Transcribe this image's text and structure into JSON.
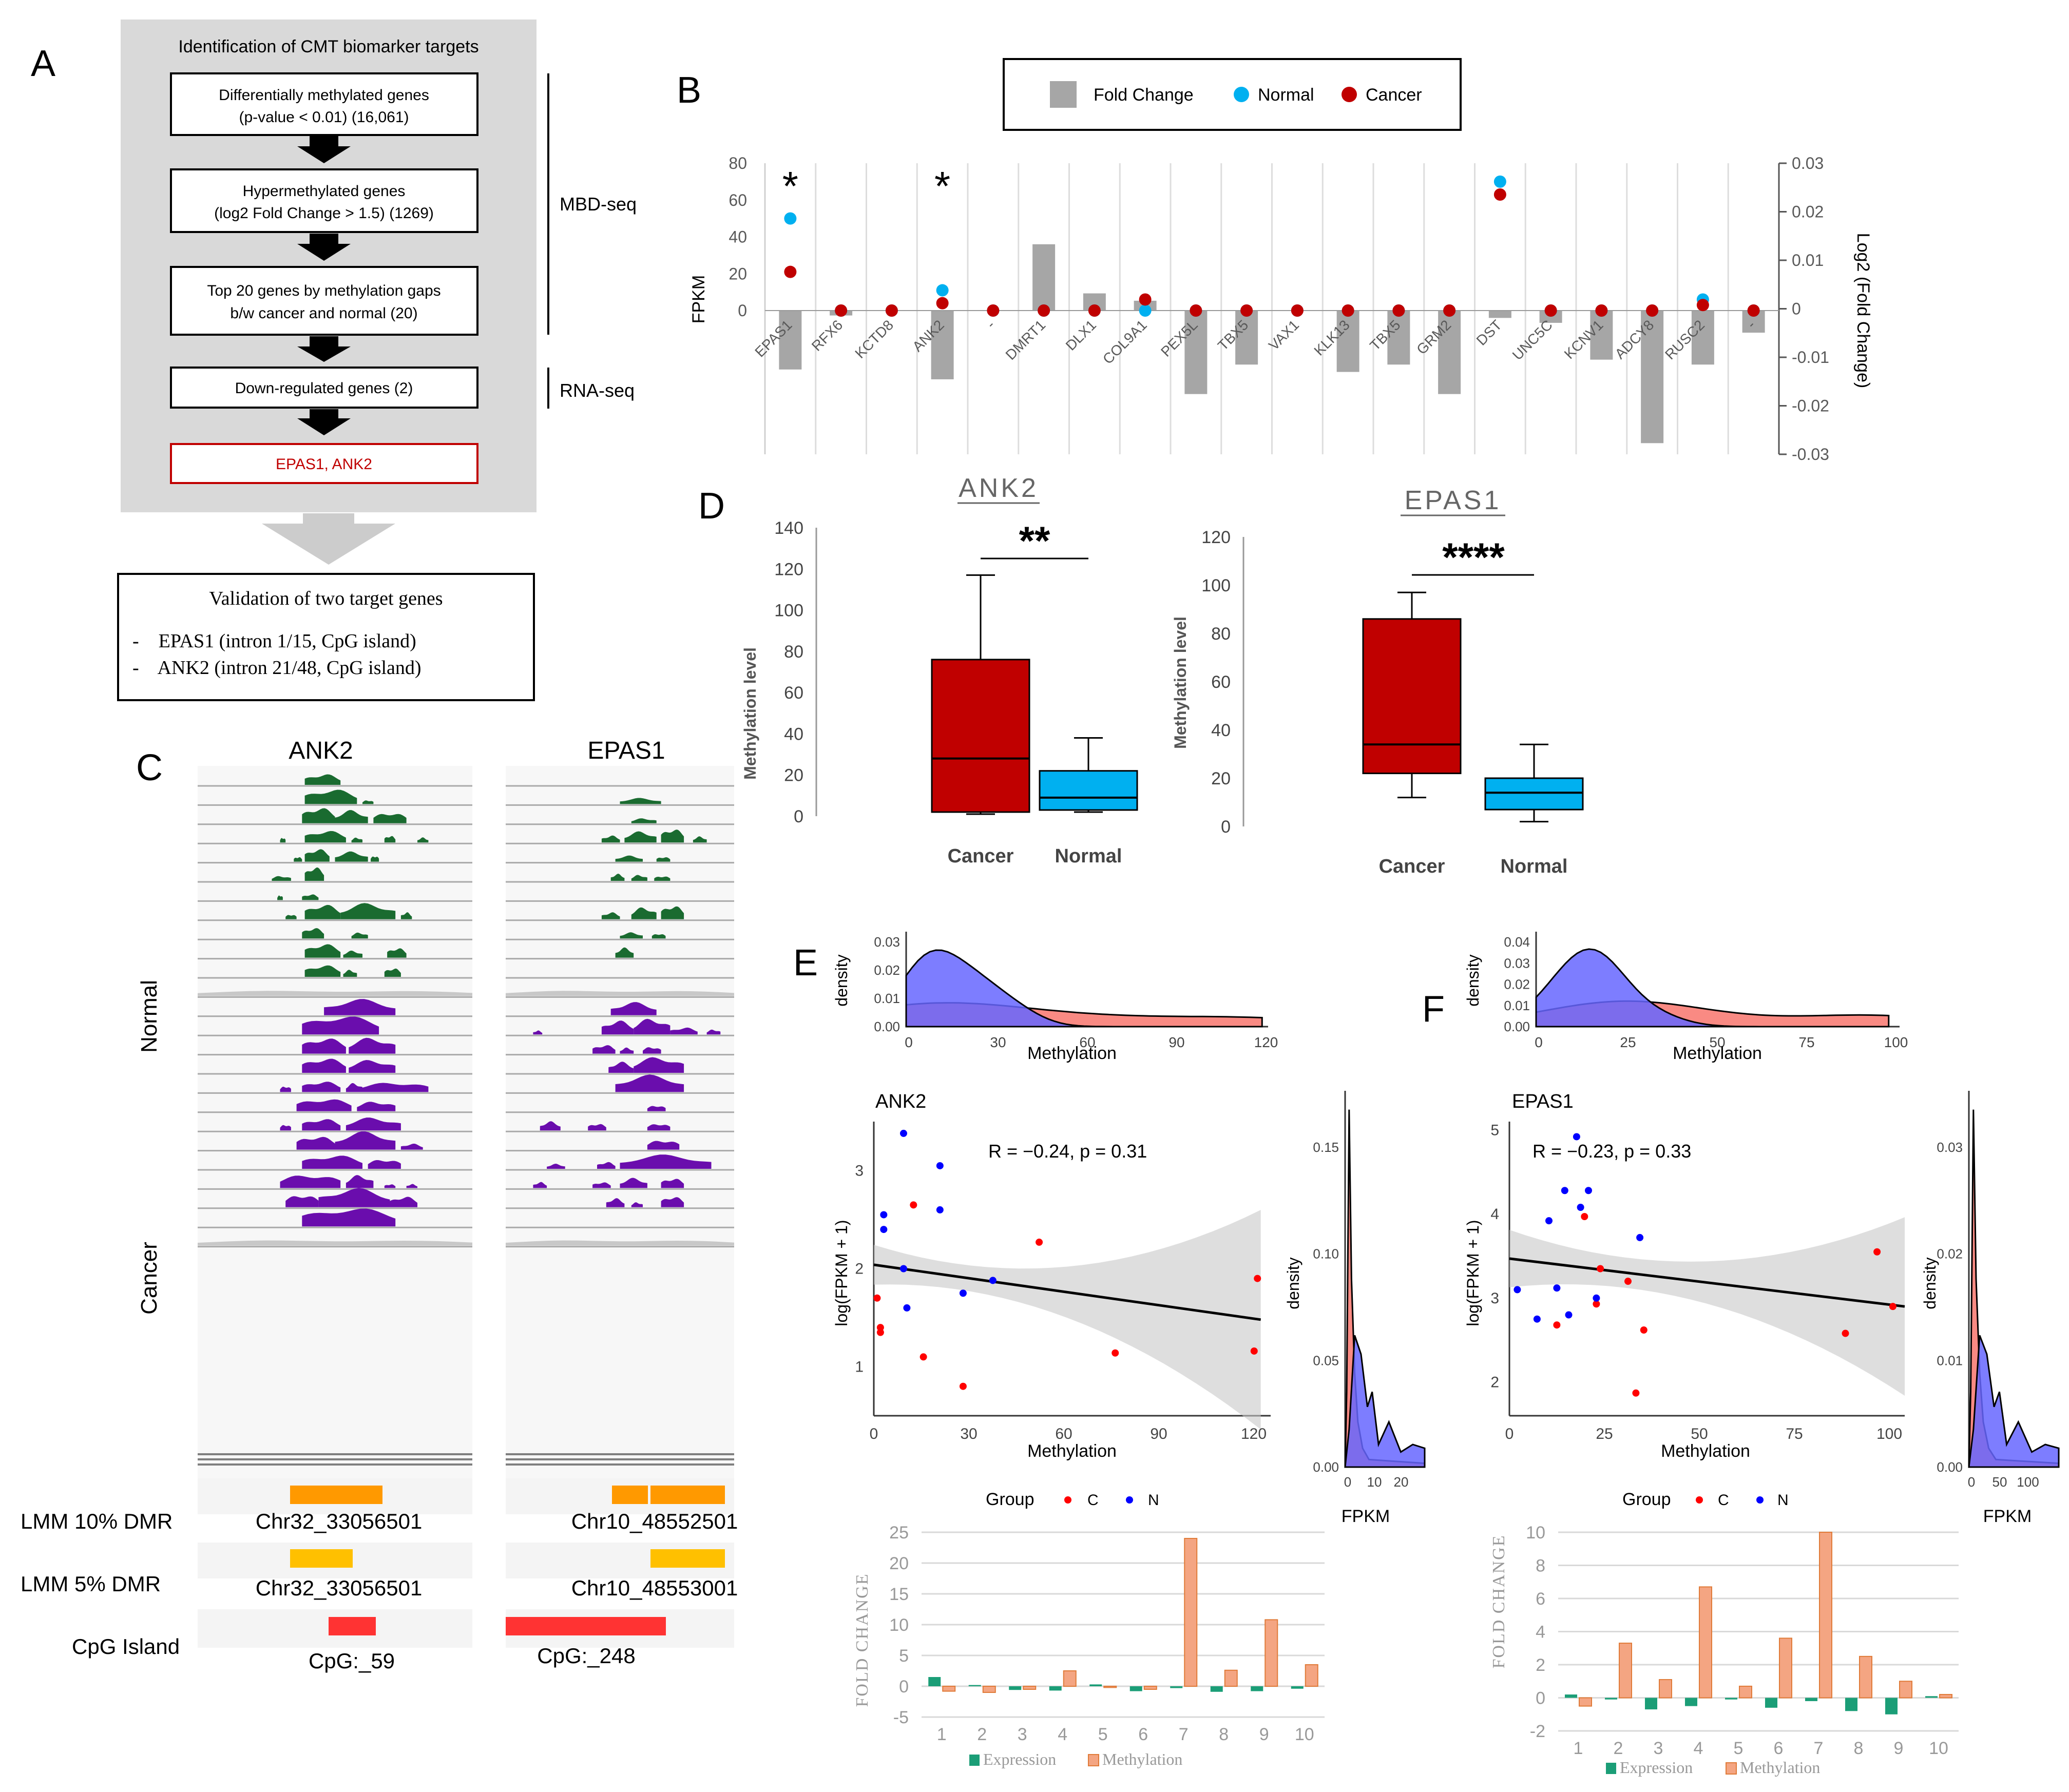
{
  "colors": {
    "panel_bg": "#d9d9d9",
    "arrow_bg": "#cccccc",
    "bar_gray": "#a6a6a6",
    "normal_blue": "#00b0f0",
    "cancer_red": "#c00000",
    "box_red": "#c00000",
    "box_blue": "#00b0f0",
    "track_green": "#1a6b30",
    "track_purple": "#6a0dad",
    "track_gray": "#c8c8c8",
    "dmr_orange": "#ff9900",
    "dmr_yellow": "#ffc000",
    "cpg_red": "#ff3333",
    "density_red": "#f8766d",
    "density_blue": "#6666ff",
    "expression_green": "#1b9e77",
    "methylation_orange": "#f4a582"
  },
  "panel_labels": {
    "a": "A",
    "b": "B",
    "c": "C",
    "d": "D",
    "e": "E",
    "f": "F"
  },
  "panelA": {
    "title": "Identification of CMT biomarker targets",
    "steps": [
      {
        "line1": "Differentially methylated genes",
        "line2": "(p-value < 0.01) (16,061)"
      },
      {
        "line1": "Hypermethylated genes",
        "line2": "(log2 Fold Change > 1.5) (1269)"
      },
      {
        "line1": "Top 20 genes by methylation gaps",
        "line2": "b/w cancer and normal (20)"
      },
      {
        "line1": "Down-regulated genes (2)",
        "line2": ""
      },
      {
        "line1": "EPAS1, ANK2",
        "line2": ""
      }
    ],
    "side_labels": [
      "MBD-seq",
      "RNA-seq"
    ],
    "validation": {
      "title": "Validation of two target genes",
      "items": [
        "-    EPAS1 (intron 1/15, CpG island)",
        "-    ANK2 (intron 21/48, CpG island)"
      ]
    }
  },
  "chart_data": [
    {
      "type": "bar",
      "panel": "B",
      "categories": [
        "EPAS1",
        "RFX6",
        "KCTD8",
        "ANK2",
        "-",
        "DMRT1",
        "DLX1",
        "COL9A1",
        "PEX5L",
        "TBX5",
        "VAX1",
        "KLK13",
        "TBX5",
        "GRM2",
        "DST",
        "UNC5C",
        "KCNV1",
        "ADCY8",
        "RUSC2",
        "-"
      ],
      "series": [
        {
          "name": "Fold Change",
          "axis": "right",
          "values": [
            -0.012,
            -0.001,
            0,
            -0.014,
            0,
            0.0135,
            0.0035,
            0.002,
            -0.017,
            -0.011,
            0,
            -0.0125,
            -0.011,
            -0.017,
            -0.0015,
            -0.0025,
            -0.01,
            -0.027,
            -0.011,
            -0.0045
          ]
        },
        {
          "name": "Normal",
          "axis": "left",
          "values": [
            50,
            0,
            0,
            11,
            0,
            0,
            0,
            0,
            0,
            0,
            0,
            0,
            0,
            0,
            70,
            0,
            0,
            0,
            6,
            0
          ]
        },
        {
          "name": "Cancer",
          "axis": "left",
          "values": [
            21,
            0,
            0,
            4,
            0,
            0,
            0,
            6,
            0,
            0,
            0,
            0,
            0,
            0,
            63,
            0,
            0,
            0,
            3,
            0
          ]
        }
      ],
      "ylabel": "FPKM",
      "y2label": "Log2 (Fold Change)",
      "yticks": [
        "80",
        "60",
        "40",
        "20",
        "0"
      ],
      "y2ticks": [
        "0.03",
        "0.02",
        "0.01",
        "0",
        "-0.01",
        "-0.02",
        "-0.03"
      ],
      "ylim": [
        -80,
        80
      ],
      "y2lim": [
        -0.03,
        0.03
      ],
      "significance": [
        {
          "category_index": 0,
          "label": "*"
        },
        {
          "category_index": 3,
          "label": "*"
        }
      ],
      "legend": [
        "Fold Change",
        "Normal",
        "Cancer"
      ],
      "legend_position": "top"
    },
    {
      "type": "box",
      "panel": "D",
      "title": "ANK2",
      "ylabel": "Methylation level",
      "categories": [
        "Cancer",
        "Normal"
      ],
      "ylim": [
        0,
        140
      ],
      "yticks": [
        "140",
        "120",
        "100",
        "80",
        "60",
        "40",
        "20",
        "0"
      ],
      "boxes": [
        {
          "min": 1,
          "q1": 2,
          "median": 28,
          "q3": 76,
          "max": 117
        },
        {
          "min": 2,
          "q1": 3,
          "median": 9,
          "q3": 22,
          "max": 38
        }
      ],
      "significance": "**"
    },
    {
      "type": "box",
      "panel": "D",
      "title": "EPAS1",
      "ylabel": "Methylation level",
      "categories": [
        "Cancer",
        "Normal"
      ],
      "ylim": [
        0,
        120
      ],
      "yticks": [
        "120",
        "100",
        "80",
        "60",
        "40",
        "20",
        "0"
      ],
      "boxes": [
        {
          "min": 12,
          "q1": 22,
          "median": 34,
          "q3": 86,
          "max": 97
        },
        {
          "min": 2,
          "q1": 7,
          "median": 14,
          "q3": 20,
          "max": 34
        }
      ],
      "significance": "****"
    },
    {
      "type": "scatter",
      "panel": "E",
      "title": "ANK2",
      "xlabel": "Methylation",
      "ylabel": "log(FPKM + 1)",
      "annotation": "R = −0.24, p = 0.31",
      "xlim": [
        0,
        120
      ],
      "ylim": [
        0.5,
        3.5
      ],
      "xticks": [
        "0",
        "30",
        "60",
        "90",
        "120"
      ],
      "yticks": [
        "1",
        "2",
        "3"
      ],
      "fit": [
        [
          0,
          2.04
        ],
        [
          117,
          1.48
        ]
      ],
      "series": [
        {
          "name": "C",
          "points": [
            [
              1,
              1.7
            ],
            [
              2,
              1.35
            ],
            [
              2,
              1.4
            ],
            [
              12,
              2.65
            ],
            [
              15,
              1.1
            ],
            [
              27,
              0.8
            ],
            [
              50,
              2.27
            ],
            [
              73,
              1.14
            ],
            [
              116,
              1.9
            ],
            [
              115,
              1.16
            ]
          ]
        },
        {
          "name": "N",
          "points": [
            [
              3,
              2.4
            ],
            [
              3,
              2.55
            ],
            [
              9,
              3.38
            ],
            [
              10,
              1.6
            ],
            [
              9,
              2.0
            ],
            [
              20,
              3.05
            ],
            [
              20,
              2.6
            ],
            [
              27,
              1.75
            ],
            [
              36,
              1.88
            ]
          ]
        }
      ],
      "top_density": {
        "xlabel": "Methylation",
        "ylabel": "density",
        "yticks": [
          "0.03",
          "0.02",
          "0.01",
          "0.00"
        ],
        "xticks": [
          "0",
          "30",
          "60",
          "90",
          "120"
        ]
      },
      "right_density": {
        "xlabel": "FPKM",
        "ylabel": "density",
        "yticks": [
          "0.15",
          "0.10",
          "0.05",
          "0.00"
        ],
        "xticks": [
          "0",
          "10",
          "20"
        ]
      },
      "legend_title": "Group"
    },
    {
      "type": "scatter",
      "panel": "F",
      "title": "EPAS1",
      "xlabel": "Methylation",
      "ylabel": "log(FPKM + 1)",
      "annotation": "R = −0.23, p = 0.33",
      "xlim": [
        0,
        100
      ],
      "ylim": [
        1.6,
        5.1
      ],
      "xticks": [
        "0",
        "25",
        "50",
        "75",
        "100"
      ],
      "yticks": [
        "2",
        "3",
        "4",
        "5"
      ],
      "fit": [
        [
          0,
          3.47
        ],
        [
          100,
          2.9
        ]
      ],
      "series": [
        {
          "name": "C",
          "points": [
            [
              12,
              2.68
            ],
            [
              19,
              3.97
            ],
            [
              22,
              2.93
            ],
            [
              23,
              3.35
            ],
            [
              30,
              3.2
            ],
            [
              32,
              1.87
            ],
            [
              34,
              2.62
            ],
            [
              85,
              2.58
            ],
            [
              93,
              3.55
            ],
            [
              97,
              2.9
            ]
          ]
        },
        {
          "name": "N",
          "points": [
            [
              2,
              3.1
            ],
            [
              7,
              2.75
            ],
            [
              10,
              3.92
            ],
            [
              12,
              3.12
            ],
            [
              14,
              4.28
            ],
            [
              15,
              2.8
            ],
            [
              17,
              4.92
            ],
            [
              18,
              4.08
            ],
            [
              20,
              4.28
            ],
            [
              22,
              3.0
            ],
            [
              33,
              3.72
            ]
          ]
        }
      ],
      "top_density": {
        "xlabel": "Methylation",
        "ylabel": "density",
        "yticks": [
          "0.04",
          "0.03",
          "0.02",
          "0.01",
          "0.00"
        ],
        "xticks": [
          "0",
          "25",
          "50",
          "75",
          "100"
        ]
      },
      "right_density": {
        "xlabel": "FPKM",
        "ylabel": "density",
        "yticks": [
          "0.03",
          "0.02",
          "0.01",
          "0.00"
        ],
        "xticks": [
          "0",
          "50",
          "100"
        ]
      },
      "legend_title": "Group"
    },
    {
      "type": "bar",
      "panel": "E",
      "ylabel": "FOLD CHANGE",
      "categories": [
        "1",
        "2",
        "3",
        "4",
        "5",
        "6",
        "7",
        "8",
        "9",
        "10"
      ],
      "ylim": [
        -5,
        25
      ],
      "yticks": [
        "25",
        "20",
        "15",
        "10",
        "5",
        "0",
        "-5"
      ],
      "series": [
        {
          "name": "Expression",
          "values": [
            1.5,
            0.2,
            -0.6,
            -0.7,
            0.3,
            -0.8,
            -0.3,
            -0.9,
            -0.8,
            -0.4
          ]
        },
        {
          "name": "Methylation",
          "values": [
            -0.8,
            -1.0,
            -0.5,
            2.5,
            -0.2,
            -0.5,
            24,
            2.6,
            10.8,
            3.5
          ]
        }
      ],
      "legend_position": "bottom"
    },
    {
      "type": "bar",
      "panel": "F",
      "ylabel": "FOLD CHANGE",
      "categories": [
        "1",
        "2",
        "3",
        "4",
        "5",
        "6",
        "7",
        "8",
        "9",
        "10"
      ],
      "ylim": [
        -2,
        10
      ],
      "yticks": [
        "10",
        "8",
        "6",
        "4",
        "2",
        "0",
        "-2"
      ],
      "series": [
        {
          "name": "Expression",
          "values": [
            0.2,
            -0.1,
            -0.7,
            -0.5,
            -0.1,
            -0.6,
            -0.2,
            -0.8,
            -1.0,
            0.1
          ]
        },
        {
          "name": "Methylation",
          "values": [
            -0.5,
            3.3,
            1.1,
            6.7,
            0.7,
            3.6,
            10,
            2.5,
            1.0,
            0.2
          ]
        }
      ],
      "legend_position": "bottom"
    }
  ],
  "panelC": {
    "genes": [
      "ANK2",
      "EPAS1"
    ],
    "group_labels": [
      "Normal",
      "Cancer"
    ],
    "row_labels": [
      "LMM 10% DMR",
      "LMM 5% DMR",
      "CpG Island"
    ],
    "ank2": {
      "dmr10": "Chr32_33056501",
      "dmr5": "Chr32_33056501",
      "cpg": "CpG:_59"
    },
    "epas1": {
      "dmr10": "Chr10_48552501",
      "dmr5": "Chr10_48553001",
      "cpg": "CpG:_248"
    }
  },
  "legend_labels": {
    "group": "Group",
    "c": "C",
    "n": "N",
    "expression": "Expression",
    "methylation": "Methylation",
    "density": "density",
    "fpkm": "FPKM",
    "methylation_axis": "Methylation"
  }
}
